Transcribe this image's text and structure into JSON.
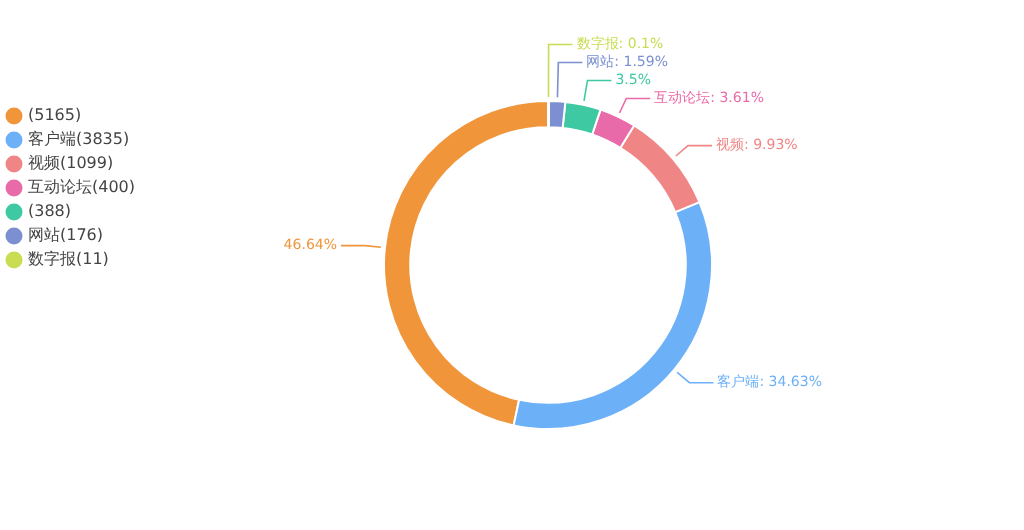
{
  "chart_data": {
    "type": "donut",
    "categories": [
      null,
      "客户端",
      "视频",
      "互动论坛",
      null,
      "网站",
      "数字报"
    ],
    "values": [
      46.64,
      34.63,
      9.93,
      3.61,
      3.5,
      1.59,
      0.1
    ],
    "colors": [
      "#f0953a",
      "#6cb0f8",
      "#f08585",
      "#e96aa8",
      "#3ec9a2",
      "#7b8fd1",
      "#c9dc52"
    ],
    "value_labels": [
      "46.64%",
      "客户端: 34.63%",
      "视频: 9.93%",
      "互动论坛: 3.61%",
      "3.5%",
      "网站: 1.59%",
      "数字报: 0.1%"
    ],
    "annotations": [
      "(5165)",
      "(3835)",
      "(1099)",
      "(400)",
      "(388)",
      "(176)",
      "(11)"
    ],
    "legend": "top left"
  }
}
